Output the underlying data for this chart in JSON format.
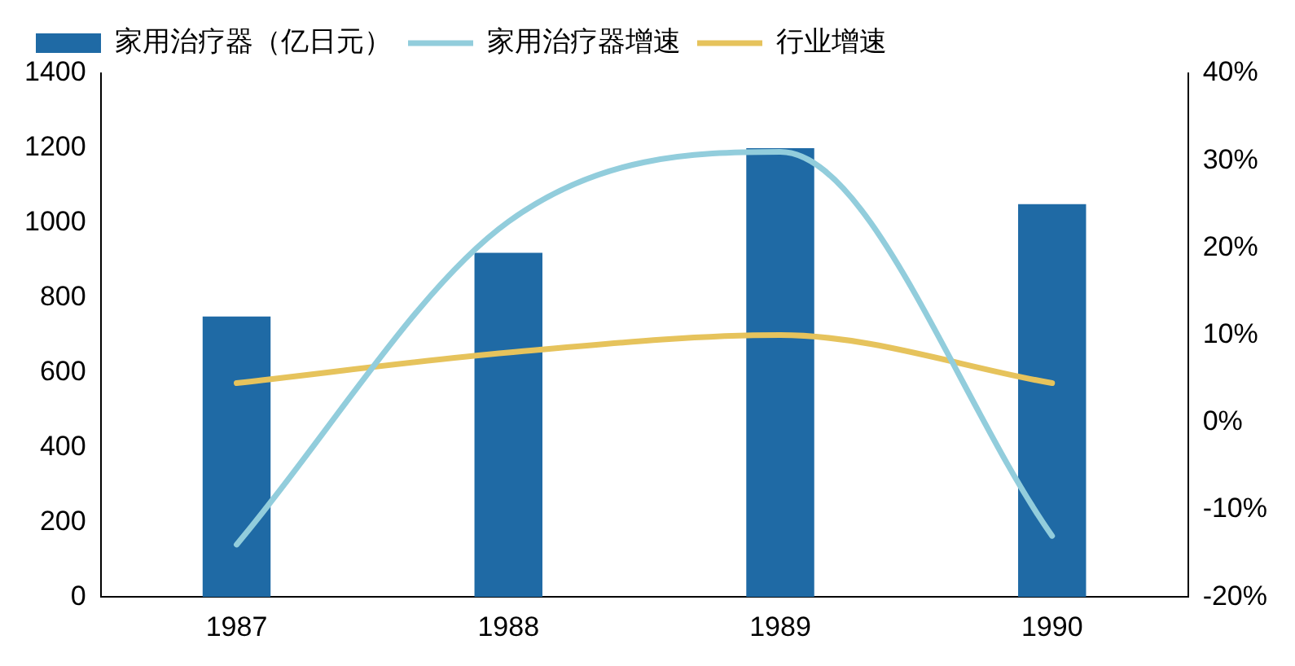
{
  "chart_data": {
    "type": "bar",
    "categories": [
      "1987",
      "1988",
      "1989",
      "1990"
    ],
    "series": [
      {
        "name": "家用治疗器（亿日元）",
        "color": "#1f6aa5",
        "values": [
          750,
          920,
          1200,
          1050
        ]
      },
      {
        "name": "家用治疗器增速",
        "type": "line",
        "axis": "y2",
        "color": "#92cddc",
        "values": [
          -14,
          23,
          31,
          -13
        ]
      },
      {
        "name": "行业增速",
        "type": "line",
        "axis": "y2",
        "color": "#e6c35c",
        "values": [
          4.5,
          8,
          10,
          4.5
        ]
      }
    ],
    "ylim": [
      0,
      1400
    ],
    "yticks": [
      0,
      200,
      400,
      600,
      800,
      1000,
      1200,
      1400
    ],
    "y2lim": [
      -20,
      40
    ],
    "y2ticks": [
      {
        "value": -20,
        "label": "-20%"
      },
      {
        "value": -10,
        "label": "-10%"
      },
      {
        "value": 0,
        "label": "0%"
      },
      {
        "value": 10,
        "label": "10%"
      },
      {
        "value": 20,
        "label": "20%"
      },
      {
        "value": 30,
        "label": "30%"
      },
      {
        "value": 40,
        "label": "40%"
      }
    ],
    "grid": false,
    "legend": "top",
    "marker": "none",
    "line_style": "solid"
  }
}
